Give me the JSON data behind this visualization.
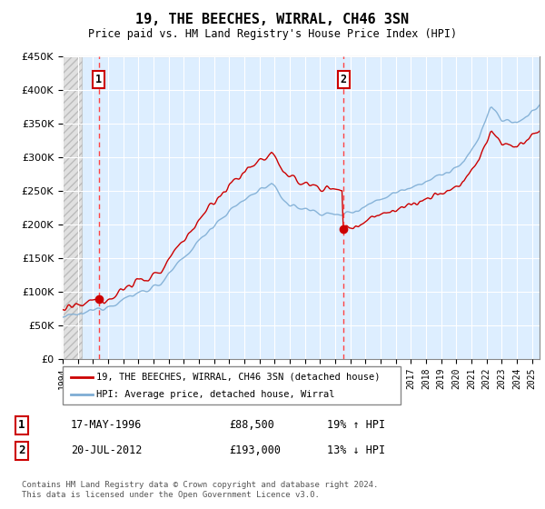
{
  "title": "19, THE BEECHES, WIRRAL, CH46 3SN",
  "subtitle": "Price paid vs. HM Land Registry's House Price Index (HPI)",
  "ylim": [
    0,
    450000
  ],
  "xlim_start": 1994.0,
  "xlim_end": 2025.5,
  "background_color": "#ddeeff",
  "grid_color": "#ffffff",
  "transaction1_date": 1996.37,
  "transaction1_price": 88500,
  "transaction1_label": "1",
  "transaction2_date": 2012.55,
  "transaction2_price": 193000,
  "transaction2_label": "2",
  "legend_label_red": "19, THE BEECHES, WIRRAL, CH46 3SN (detached house)",
  "legend_label_blue": "HPI: Average price, detached house, Wirral",
  "table_row1": [
    "1",
    "17-MAY-1996",
    "£88,500",
    "19% ↑ HPI"
  ],
  "table_row2": [
    "2",
    "20-JUL-2012",
    "£193,000",
    "13% ↓ HPI"
  ],
  "footer": "Contains HM Land Registry data © Crown copyright and database right 2024.\nThis data is licensed under the Open Government Licence v3.0.",
  "red_line_color": "#cc0000",
  "blue_line_color": "#7eadd4",
  "dot_color": "#cc0000",
  "vline_color": "#ff4444",
  "box_color": "#cc0000",
  "hatch_end": 1995.25
}
